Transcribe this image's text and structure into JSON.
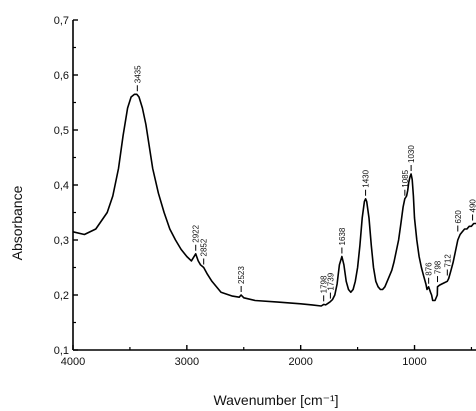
{
  "chart_data": {
    "type": "line",
    "title": "",
    "xlabel": "Wavenumber [cm⁻¹]",
    "ylabel": "Absorbance",
    "xlim": [
      4000,
      460
    ],
    "ylim": [
      0.1,
      0.7
    ],
    "x_ticks": [
      4000,
      3000,
      2000,
      1000
    ],
    "x_tick_labels": [
      "4000",
      "3000",
      "2000",
      "1000"
    ],
    "y_ticks": [
      0.1,
      0.2,
      0.3,
      0.4,
      0.5,
      0.6,
      0.7
    ],
    "y_tick_labels": [
      "0,1",
      "0,2",
      "0,3",
      "0,4",
      "0,5",
      "0,6",
      "0,7"
    ],
    "grid": false,
    "line_color": "#000000",
    "series": [
      {
        "x": [
          4000,
          3900,
          3800,
          3700,
          3650,
          3600,
          3560,
          3520,
          3490,
          3460,
          3440,
          3420,
          3390,
          3360,
          3330,
          3300,
          3250,
          3200,
          3150,
          3100,
          3050,
          3000,
          2960,
          2922,
          2900,
          2880,
          2852,
          2820,
          2780,
          2700,
          2600,
          2540,
          2523,
          2500,
          2400,
          2200,
          2000,
          1900,
          1820,
          1798,
          1780,
          1760,
          1739,
          1720,
          1700,
          1680,
          1660,
          1638,
          1620,
          1600,
          1580,
          1560,
          1540,
          1520,
          1500,
          1480,
          1460,
          1440,
          1430,
          1420,
          1400,
          1380,
          1360,
          1340,
          1320,
          1300,
          1280,
          1260,
          1240,
          1220,
          1200,
          1180,
          1160,
          1140,
          1120,
          1100,
          1085,
          1070,
          1060,
          1050,
          1040,
          1030,
          1020,
          1010,
          1000,
          980,
          960,
          940,
          920,
          900,
          890,
          876,
          860,
          850,
          840,
          820,
          800,
          798,
          780,
          760,
          740,
          712,
          700,
          680,
          660,
          640,
          620,
          600,
          580,
          560,
          540,
          520,
          500,
          480,
          460
        ],
        "y": [
          0.315,
          0.31,
          0.32,
          0.35,
          0.38,
          0.43,
          0.49,
          0.54,
          0.56,
          0.565,
          0.565,
          0.56,
          0.54,
          0.51,
          0.47,
          0.43,
          0.385,
          0.35,
          0.32,
          0.3,
          0.283,
          0.27,
          0.262,
          0.275,
          0.262,
          0.255,
          0.25,
          0.238,
          0.225,
          0.205,
          0.198,
          0.196,
          0.2,
          0.195,
          0.19,
          0.187,
          0.184,
          0.182,
          0.18,
          0.183,
          0.182,
          0.185,
          0.188,
          0.192,
          0.2,
          0.22,
          0.255,
          0.27,
          0.255,
          0.225,
          0.21,
          0.205,
          0.21,
          0.225,
          0.25,
          0.29,
          0.34,
          0.37,
          0.375,
          0.37,
          0.34,
          0.29,
          0.25,
          0.225,
          0.215,
          0.21,
          0.21,
          0.215,
          0.225,
          0.235,
          0.245,
          0.26,
          0.28,
          0.3,
          0.33,
          0.36,
          0.375,
          0.38,
          0.39,
          0.405,
          0.415,
          0.42,
          0.41,
          0.38,
          0.34,
          0.3,
          0.27,
          0.25,
          0.235,
          0.22,
          0.21,
          0.215,
          0.205,
          0.2,
          0.19,
          0.19,
          0.2,
          0.215,
          0.218,
          0.22,
          0.222,
          0.225,
          0.23,
          0.245,
          0.26,
          0.28,
          0.3,
          0.31,
          0.315,
          0.32,
          0.32,
          0.325,
          0.325,
          0.33,
          0.33
        ]
      }
    ],
    "annotations": [
      {
        "label": "3435",
        "x": 3435,
        "y": 0.565
      },
      {
        "label": "2922",
        "x": 2922,
        "y": 0.275
      },
      {
        "label": "2852",
        "x": 2852,
        "y": 0.25
      },
      {
        "label": "2523",
        "x": 2523,
        "y": 0.2
      },
      {
        "label": "1798",
        "x": 1798,
        "y": 0.183
      },
      {
        "label": "1739",
        "x": 1739,
        "y": 0.188
      },
      {
        "label": "1638",
        "x": 1638,
        "y": 0.27
      },
      {
        "label": "1430",
        "x": 1430,
        "y": 0.375
      },
      {
        "label": "1085",
        "x": 1085,
        "y": 0.375
      },
      {
        "label": "1030",
        "x": 1030,
        "y": 0.42
      },
      {
        "label": "876",
        "x": 876,
        "y": 0.215
      },
      {
        "label": "798",
        "x": 798,
        "y": 0.218
      },
      {
        "label": "712",
        "x": 712,
        "y": 0.23
      },
      {
        "label": "620",
        "x": 620,
        "y": 0.31
      },
      {
        "label": "490",
        "x": 490,
        "y": 0.33
      }
    ]
  }
}
